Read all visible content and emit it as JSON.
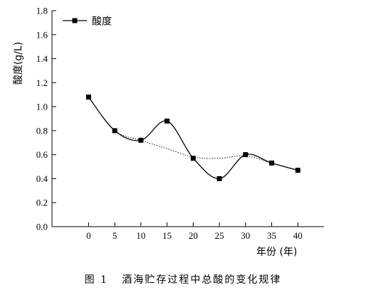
{
  "figure": {
    "caption": "图 1   酒海贮存过程中总酸的变化规律"
  },
  "chart_data": {
    "type": "line",
    "xlabel": "年份 (年)",
    "ylabel": "酸度(g/L)",
    "xlim": [
      -7,
      45
    ],
    "ylim": [
      0,
      1.8
    ],
    "x_ticks": [
      0,
      5,
      10,
      15,
      20,
      25,
      30,
      35,
      40
    ],
    "y_ticks": [
      "0.0",
      "0.2",
      "0.4",
      "0.6",
      "0.8",
      "1.0",
      "1.2",
      "1.4",
      "1.6",
      "1.8"
    ],
    "legend": "top-left",
    "series": [
      {
        "name": "酸度",
        "x": [
          0,
          5,
          10,
          15,
          20,
          25,
          30,
          35,
          40
        ],
        "y": [
          1.08,
          0.8,
          0.72,
          0.88,
          0.57,
          0.4,
          0.6,
          0.53,
          0.47
        ]
      }
    ],
    "trend_line": {
      "style": "dotted",
      "x": [
        0,
        5,
        10,
        15,
        20,
        25,
        30,
        35,
        40
      ],
      "y": [
        1.08,
        0.8,
        0.72,
        0.65,
        0.58,
        0.57,
        0.59,
        0.53,
        0.47
      ]
    }
  }
}
